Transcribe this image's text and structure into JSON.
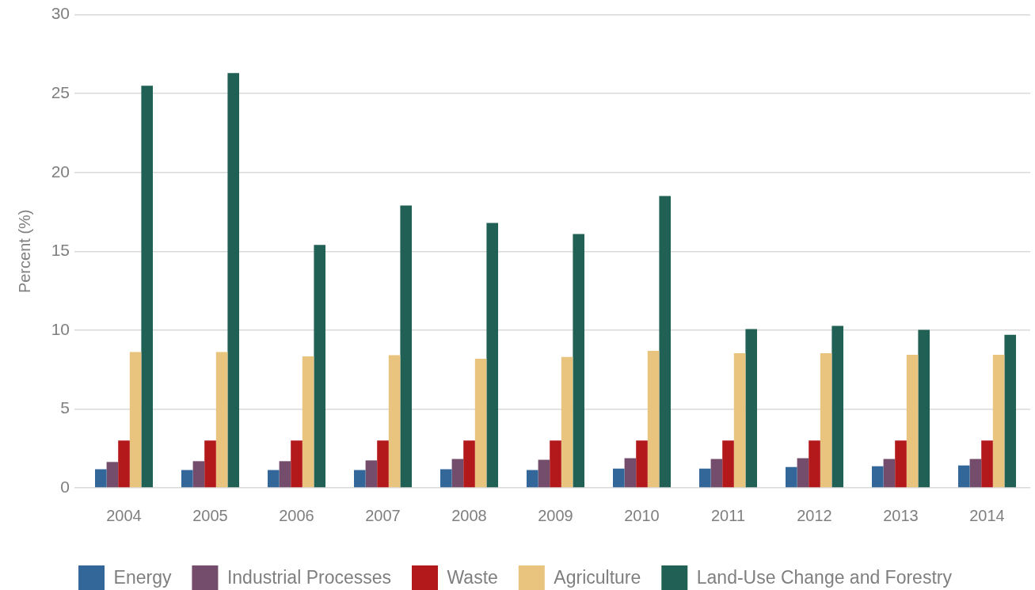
{
  "chart_data": {
    "type": "bar",
    "ylabel": "Percent (%)",
    "categories": [
      "2004",
      "2005",
      "2006",
      "2007",
      "2008",
      "2009",
      "2010",
      "2011",
      "2012",
      "2013",
      "2014"
    ],
    "ylim": [
      0,
      30
    ],
    "yticks": [
      0,
      5,
      10,
      15,
      20,
      25,
      30
    ],
    "grid": "y",
    "legend": "bottom",
    "series": [
      {
        "name": "Energy",
        "color": "#336699",
        "values": [
          1.18,
          1.13,
          1.13,
          1.13,
          1.18,
          1.13,
          1.22,
          1.22,
          1.32,
          1.37,
          1.42
        ]
      },
      {
        "name": "Industrial Processes",
        "color": "#744c6c",
        "values": [
          1.64,
          1.69,
          1.69,
          1.74,
          1.83,
          1.78,
          1.88,
          1.83,
          1.88,
          1.83,
          1.83
        ]
      },
      {
        "name": "Waste",
        "color": "#b3191b",
        "values": [
          3.0,
          3.0,
          3.0,
          3.0,
          3.0,
          3.0,
          3.0,
          3.0,
          3.0,
          3.0,
          3.0
        ]
      },
      {
        "name": "Agriculture",
        "color": "#e9c47f",
        "values": [
          8.61,
          8.61,
          8.34,
          8.41,
          8.19,
          8.3,
          8.69,
          8.54,
          8.54,
          8.44,
          8.44
        ]
      },
      {
        "name": "Land-Use Change and Forestry",
        "color": "#216155",
        "values": [
          25.5,
          26.3,
          15.4,
          17.9,
          16.8,
          16.1,
          18.5,
          10.07,
          10.27,
          10.02,
          9.71
        ]
      }
    ]
  }
}
